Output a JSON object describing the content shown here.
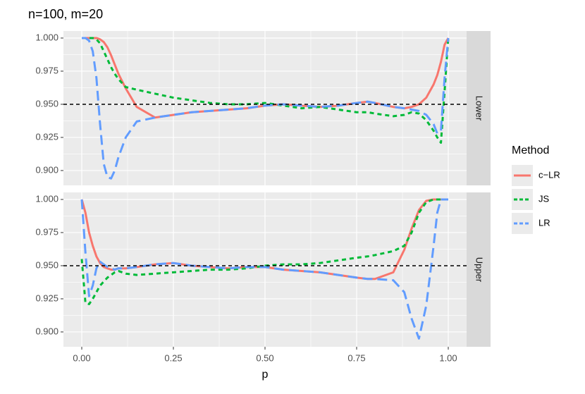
{
  "chart_data": {
    "type": "line",
    "title": "n=100, m=20",
    "x_label": "p",
    "legend_title": "Method",
    "grid": true,
    "reference_line": 0.95,
    "x": [
      0,
      0.01,
      0.02,
      0.03,
      0.04,
      0.05,
      0.06,
      0.07,
      0.08,
      0.09,
      0.1,
      0.12,
      0.15,
      0.2,
      0.25,
      0.3,
      0.35,
      0.4,
      0.45,
      0.5,
      0.55,
      0.6,
      0.65,
      0.7,
      0.75,
      0.78,
      0.8,
      0.85,
      0.88,
      0.9,
      0.92,
      0.94,
      0.96,
      0.97,
      0.98,
      0.99,
      1
    ],
    "xlim": [
      -0.05,
      1.05
    ],
    "xticks": [
      {
        "value": 0,
        "label": "0.00"
      },
      {
        "value": 0.25,
        "label": "0.25"
      },
      {
        "value": 0.5,
        "label": "0.50"
      },
      {
        "value": 0.75,
        "label": "0.75"
      },
      {
        "value": 1,
        "label": "1.00"
      }
    ],
    "ylim": [
      0.8888,
      1.0053
    ],
    "yticks": [
      {
        "value": 0.9,
        "label": "0.900"
      },
      {
        "value": 0.925,
        "label": "0.925"
      },
      {
        "value": 0.95,
        "label": "0.950"
      },
      {
        "value": 0.975,
        "label": "0.975"
      },
      {
        "value": 1,
        "label": "1.000"
      }
    ],
    "series": [
      {
        "name": "c−LR",
        "color": "#F8766D",
        "dash": "solid"
      },
      {
        "name": "JS",
        "color": "#00BA38",
        "dash": "dotted"
      },
      {
        "name": "LR",
        "color": "#619CFF",
        "dash": "dashed"
      }
    ],
    "facets": [
      {
        "label": "Lower",
        "series": [
          {
            "values": [
              1,
              1,
              1,
              1,
              1,
              0.999,
              0.997,
              0.993,
              0.987,
              0.98,
              0.973,
              0.962,
              0.948,
              0.94,
              0.942,
              0.944,
              0.945,
              0.946,
              0.947,
              0.949,
              0.95,
              0.949,
              0.948,
              0.949,
              0.951,
              0.952,
              0.951,
              0.948,
              0.947,
              0.948,
              0.95,
              0.955,
              0.965,
              0.972,
              0.982,
              0.995,
              1
            ]
          },
          {
            "values": [
              1,
              1,
              1,
              1,
              0.999,
              0.996,
              0.99,
              0.984,
              0.978,
              0.973,
              0.969,
              0.963,
              0.961,
              0.958,
              0.955,
              0.953,
              0.951,
              0.95,
              0.95,
              0.951,
              0.949,
              0.947,
              0.948,
              0.946,
              0.944,
              0.944,
              0.943,
              0.941,
              0.942,
              0.944,
              0.943,
              0.938,
              0.93,
              0.925,
              0.921,
              0.96,
              1
            ]
          },
          {
            "values": [
              1,
              1,
              0.998,
              0.99,
              0.97,
              0.935,
              0.905,
              0.895,
              0.894,
              0.9,
              0.91,
              0.925,
              0.937,
              0.94,
              0.942,
              0.944,
              0.945,
              0.946,
              0.947,
              0.949,
              0.95,
              0.949,
              0.948,
              0.949,
              0.951,
              0.952,
              0.951,
              0.948,
              0.947,
              0.946,
              0.945,
              0.942,
              0.935,
              0.928,
              0.93,
              0.97,
              1
            ]
          }
        ]
      },
      {
        "label": "Upper",
        "series": [
          {
            "values": [
              1,
              0.99,
              0.975,
              0.965,
              0.957,
              0.952,
              0.949,
              0.948,
              0.947,
              0.947,
              0.948,
              0.948,
              0.949,
              0.951,
              0.952,
              0.95,
              0.949,
              0.948,
              0.949,
              0.949,
              0.947,
              0.946,
              0.945,
              0.943,
              0.941,
              0.94,
              0.94,
              0.945,
              0.962,
              0.978,
              0.992,
              0.999,
              1,
              1,
              1,
              1,
              1
            ]
          },
          {
            "values": [
              0.955,
              0.922,
              0.921,
              0.925,
              0.93,
              0.935,
              0.938,
              0.941,
              0.943,
              0.945,
              0.946,
              0.944,
              0.943,
              0.944,
              0.945,
              0.946,
              0.947,
              0.947,
              0.948,
              0.95,
              0.951,
              0.951,
              0.952,
              0.954,
              0.956,
              0.957,
              0.958,
              0.961,
              0.965,
              0.975,
              0.99,
              0.998,
              1,
              1,
              1,
              1,
              1
            ]
          },
          {
            "values": [
              1,
              0.96,
              0.927,
              0.935,
              0.948,
              0.953,
              0.951,
              0.949,
              0.948,
              0.947,
              0.948,
              0.948,
              0.949,
              0.951,
              0.952,
              0.95,
              0.949,
              0.948,
              0.949,
              0.949,
              0.947,
              0.946,
              0.945,
              0.943,
              0.941,
              0.94,
              0.94,
              0.939,
              0.93,
              0.91,
              0.895,
              0.92,
              0.965,
              0.99,
              1,
              1,
              1
            ]
          }
        ]
      }
    ]
  }
}
